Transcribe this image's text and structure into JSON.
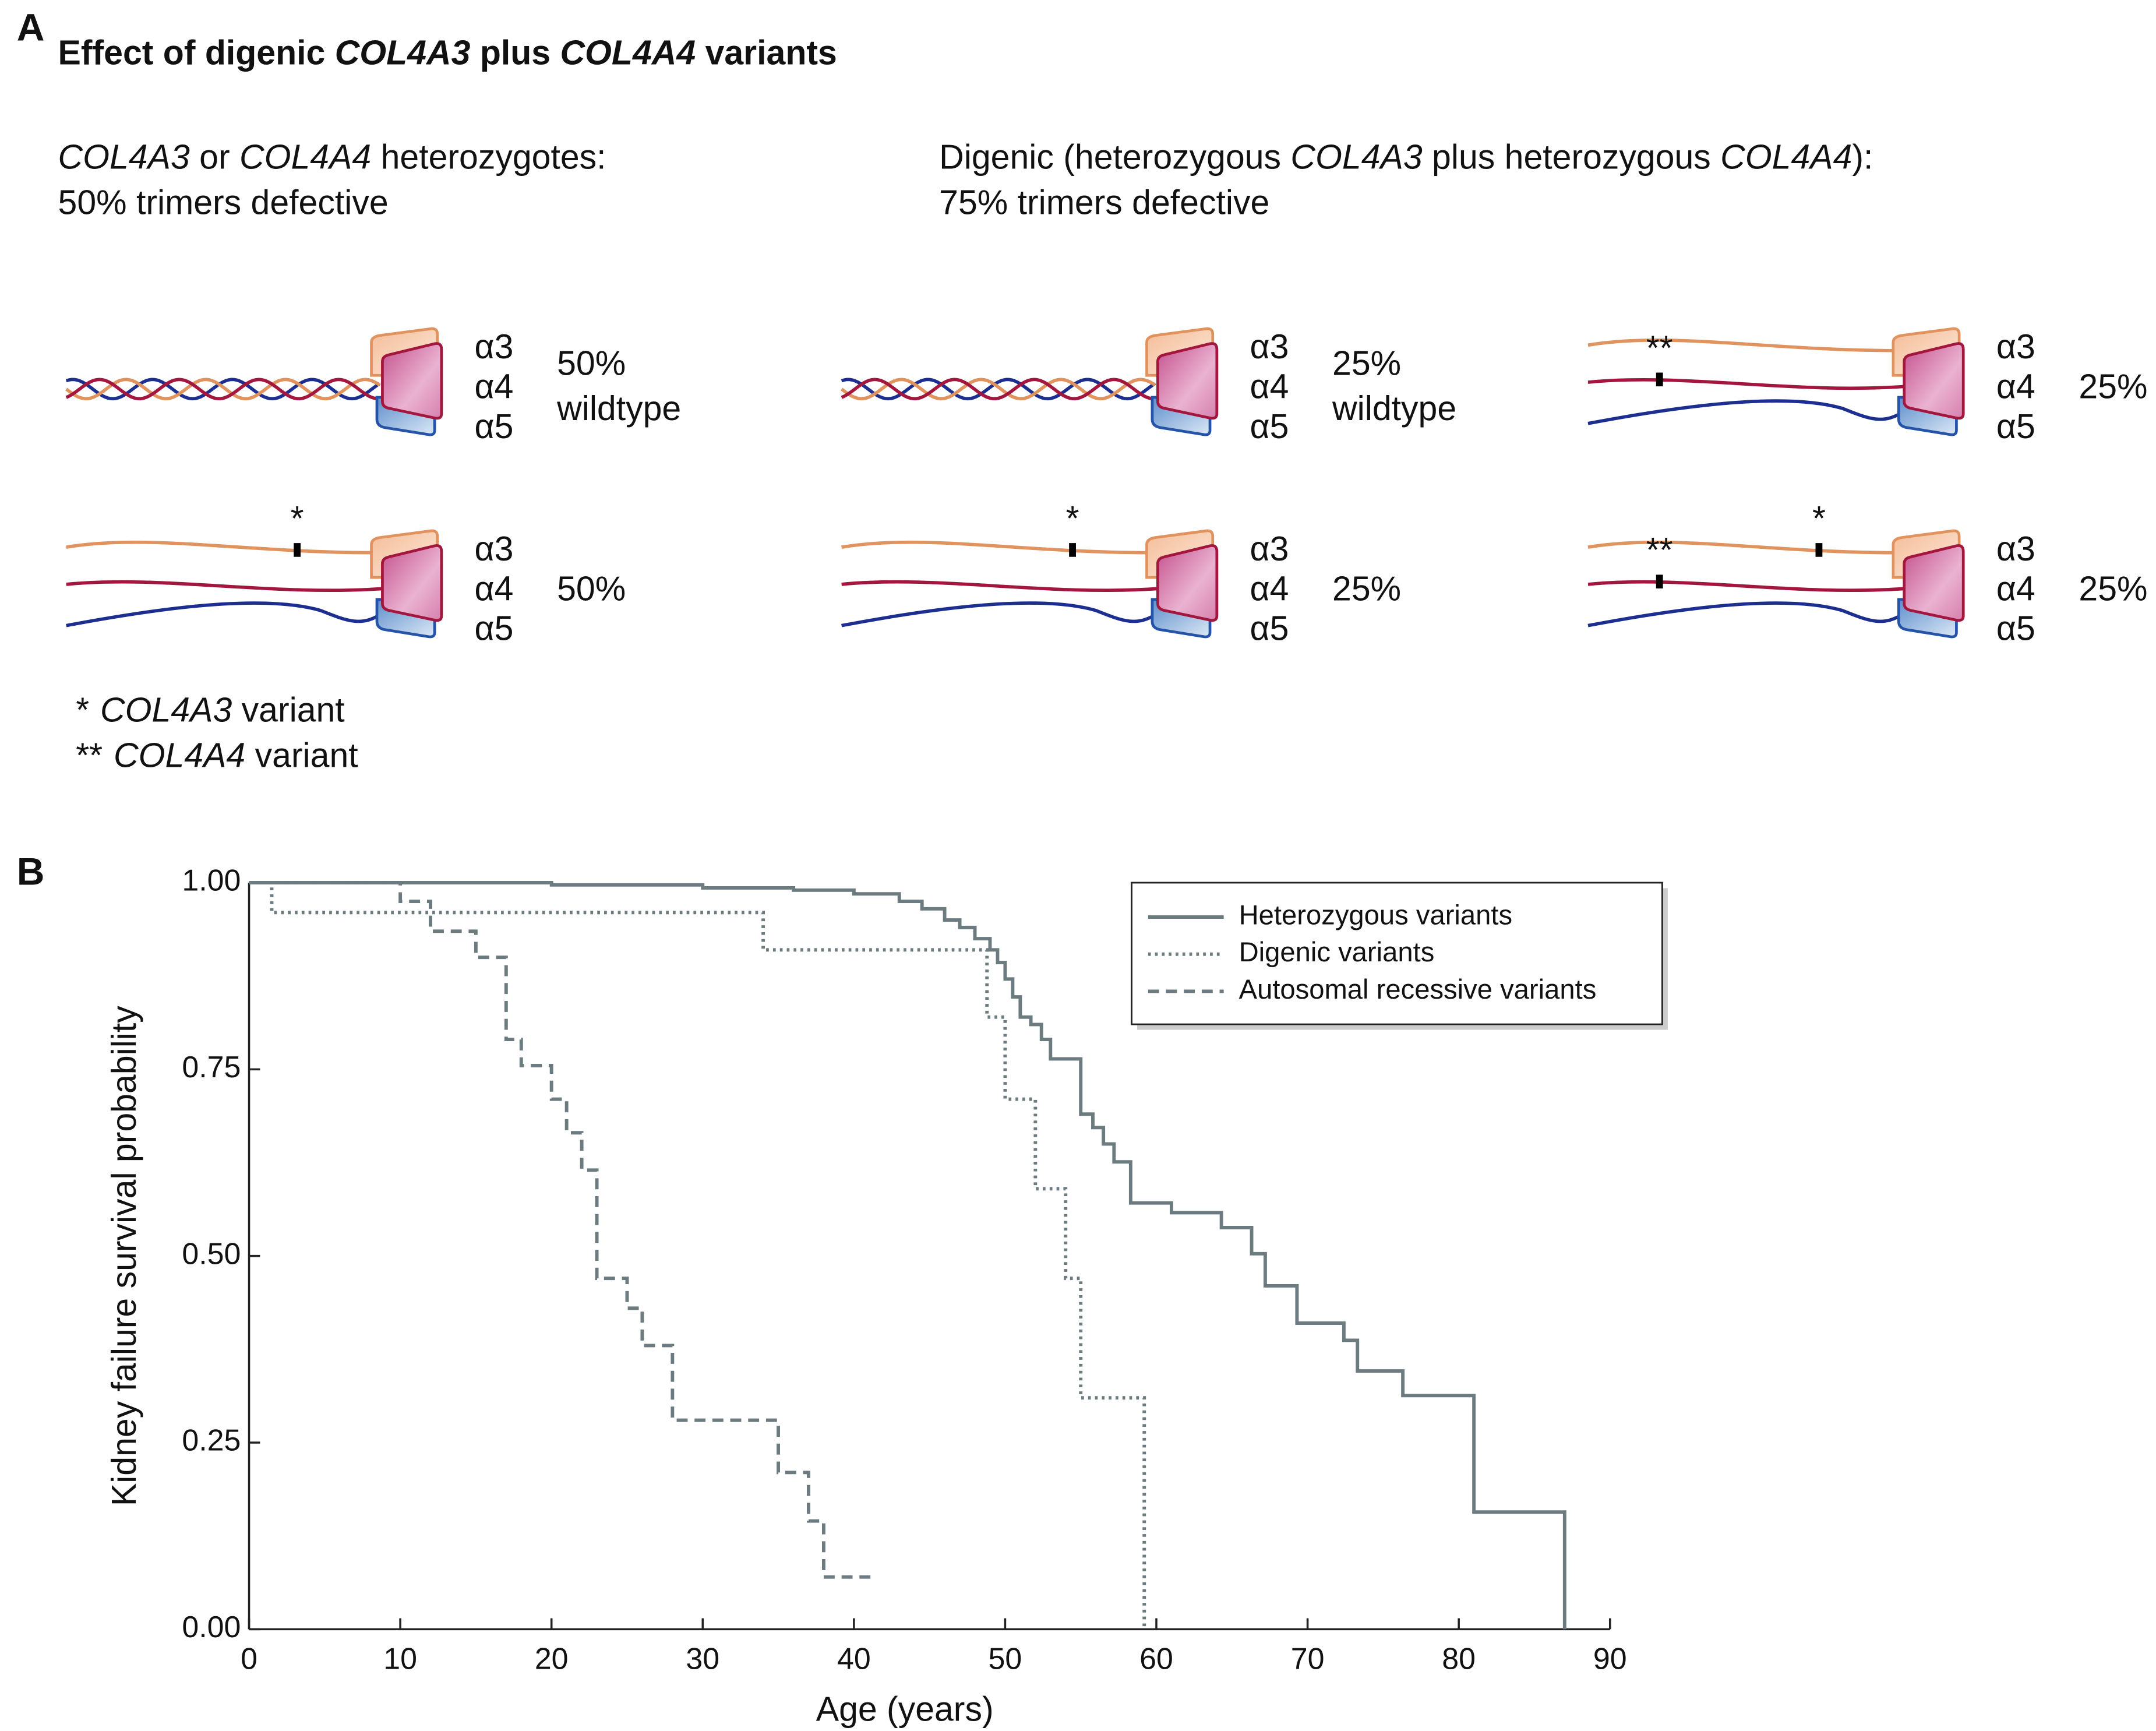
{
  "panel_a": {
    "letter": "A",
    "title": [
      {
        "text": "Effect of digenic "
      },
      {
        "text": "COL4A3",
        "italic": true
      },
      {
        "text": " plus "
      },
      {
        "text": "COL4A4",
        "italic": true
      },
      {
        "text": " variants"
      }
    ],
    "headings": [
      [
        [
          {
            "text": "COL4A3",
            "italic": true
          },
          {
            "text": " or "
          },
          {
            "text": "COL4A4",
            "italic": true
          },
          {
            "text": " heterozygotes:"
          }
        ],
        [
          {
            "text": "50% trimers defective"
          }
        ]
      ],
      [
        [
          {
            "text": "Digenic (heterozygous "
          },
          {
            "text": "COL4A3",
            "italic": true
          },
          {
            "text": " plus heterozygous "
          },
          {
            "text": "COL4A4",
            "italic": true
          },
          {
            "text": "):"
          }
        ],
        [
          {
            "text": "75% trimers defective"
          }
        ]
      ]
    ],
    "chains": [
      "α3",
      "α4",
      "α5"
    ],
    "trimers": [
      {
        "label": [
          "50%",
          "wildtype"
        ],
        "variants": []
      },
      {
        "label": [
          "50%"
        ],
        "variants": [
          0
        ]
      },
      {
        "label": [
          "25%",
          "wildtype"
        ],
        "variants": []
      },
      {
        "label": [
          "25%"
        ],
        "variants": [
          0
        ]
      },
      {
        "label": [
          "25%"
        ],
        "variants": [
          1
        ]
      },
      {
        "label": [
          "25%"
        ],
        "variants": [
          1,
          0
        ]
      }
    ],
    "legend": [
      {
        "symbol": "*",
        "text": [
          {
            "text": "COL4A3",
            "italic": true
          },
          {
            "text": " variant"
          }
        ]
      },
      {
        "symbol": "**",
        "text": [
          {
            "text": "COL4A4",
            "italic": true
          },
          {
            "text": " variant"
          }
        ]
      }
    ]
  },
  "chart_data": {
    "type": "step",
    "letter": "B",
    "xlabel": "Age (years)",
    "ylabel": "Kidney failure survival probability",
    "xlim": [
      0,
      90
    ],
    "xticks": [
      0,
      10,
      20,
      30,
      40,
      50,
      60,
      70,
      80,
      90
    ],
    "ylim": [
      0,
      1
    ],
    "yticks": [
      {
        "value": 0,
        "label": "0.00"
      },
      {
        "value": 0.25,
        "label": "0.25"
      },
      {
        "value": 0.5,
        "label": "0.50"
      },
      {
        "value": 0.75,
        "label": "0.75"
      },
      {
        "value": 1,
        "label": "1.00"
      }
    ],
    "legend_position": "upper right",
    "series": [
      {
        "name": "Heterozygous variants",
        "color": "#6b7b7f",
        "linestyle": "solid",
        "x": [
          0,
          20,
          30,
          36,
          40,
          43,
          44.5,
          46,
          47,
          48,
          49,
          49.5,
          50,
          50.5,
          51,
          51.7,
          52.4,
          53,
          55,
          55.8,
          56.5,
          57.2,
          58.3,
          61,
          64.3,
          66.3,
          67.2,
          69.3,
          72.4,
          73.3,
          76.3,
          81,
          87
        ],
        "values": [
          1,
          0.997,
          0.993,
          0.99,
          0.985,
          0.975,
          0.965,
          0.95,
          0.94,
          0.925,
          0.91,
          0.893,
          0.871,
          0.847,
          0.82,
          0.81,
          0.79,
          0.764,
          0.69,
          0.672,
          0.65,
          0.626,
          0.571,
          0.558,
          0.538,
          0.503,
          0.46,
          0.41,
          0.387,
          0.346,
          0.313,
          0.157,
          0
        ]
      },
      {
        "name": "Digenic variants",
        "color": "#6b7b7f",
        "linestyle": "dotted",
        "x": [
          0,
          1.5,
          34,
          48.8,
          50,
          52,
          54,
          55,
          59.2
        ],
        "values": [
          1,
          0.96,
          0.91,
          0.82,
          0.71,
          0.59,
          0.47,
          0.31,
          0
        ]
      },
      {
        "name": "Autosomal recessive variants",
        "color": "#6b7b7f",
        "linestyle": "dashed",
        "x": [
          0,
          10,
          12,
          15,
          17,
          18,
          20,
          21,
          22,
          23,
          25,
          26,
          28,
          35,
          37,
          38,
          41.3
        ],
        "values": [
          1,
          0.975,
          0.935,
          0.9,
          0.79,
          0.755,
          0.71,
          0.665,
          0.615,
          0.47,
          0.43,
          0.38,
          0.28,
          0.21,
          0.145,
          0.07,
          0.07
        ]
      }
    ]
  }
}
